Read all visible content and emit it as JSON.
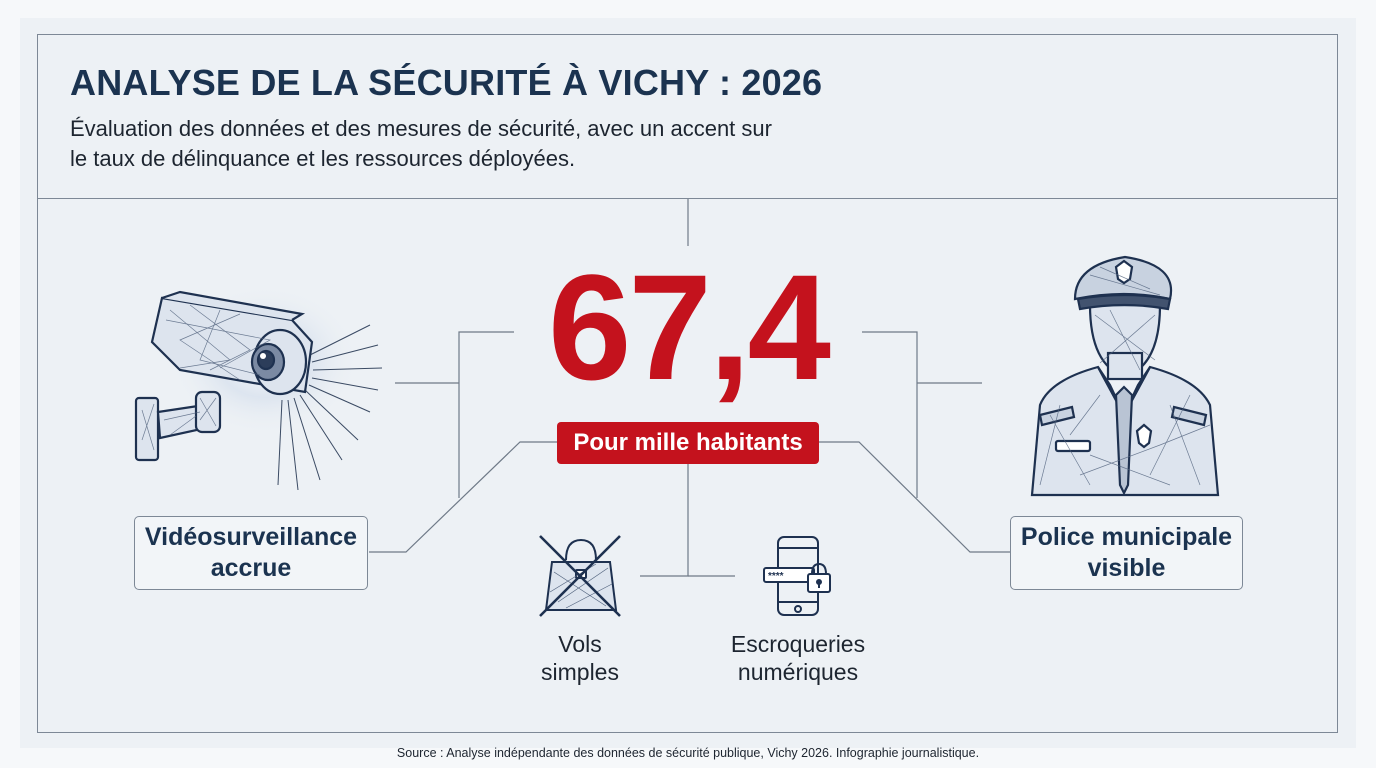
{
  "header": {
    "title": "ANALYSE DE LA SÉCURITÉ À VICHY : 2026",
    "subtitle_line1": "Évaluation des données et des mesures de sécurité, avec un accent sur",
    "subtitle_line2": "le taux de délinquance et les ressources déployées."
  },
  "center": {
    "value": "67,4",
    "unit": "Pour mille habitants"
  },
  "left": {
    "label_line1": "Vidéosurveillance",
    "label_line2": "accrue",
    "icon": "security-camera-icon"
  },
  "right": {
    "label_line1": "Police municipale",
    "label_line2": "visible",
    "icon": "police-officer-icon"
  },
  "bottom_items": [
    {
      "line1": "Vols",
      "line2": "simples",
      "icon": "crossed-out-handbag-icon"
    },
    {
      "line1": "Escroqueries",
      "line2": "numériques",
      "icon": "locked-smartphone-icon"
    }
  ],
  "footer": {
    "source": "Source : Analyse indépendante des données de sécurité publique, Vichy 2026. Infographie journalistique."
  },
  "colors": {
    "accent_red": "#c4121d",
    "title_navy": "#1b3350",
    "line_gray": "#7d8896"
  }
}
